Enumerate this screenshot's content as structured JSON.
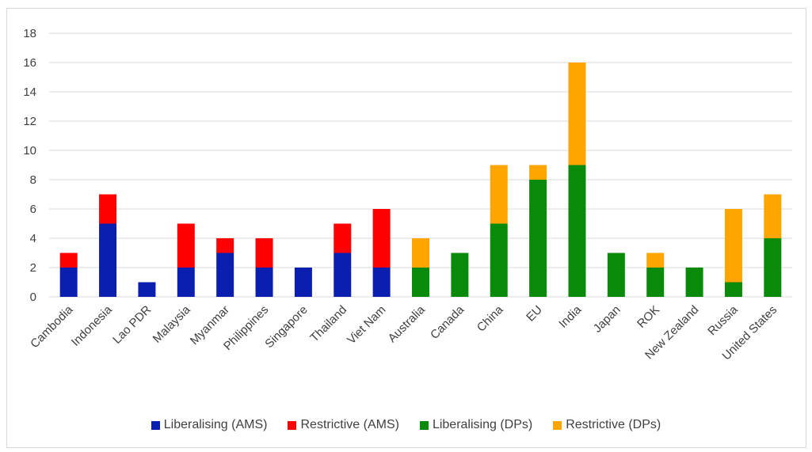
{
  "chart_data": {
    "type": "bar",
    "stacked": true,
    "categories": [
      "Cambodia",
      "Indonesia",
      "Lao PDR",
      "Malaysia",
      "Myanmar",
      "Philippines",
      "Singapore",
      "Thailand",
      "Viet Nam",
      "Australia",
      "Canada",
      "China",
      "EU",
      "India",
      "Japan",
      "ROK",
      "New Zealand",
      "Russia",
      "United States"
    ],
    "series": [
      {
        "name": "Liberalising (AMS)",
        "color": "#0a1fb0",
        "values": [
          2,
          5,
          1,
          2,
          3,
          2,
          2,
          3,
          2,
          0,
          0,
          0,
          0,
          0,
          0,
          0,
          0,
          0,
          0
        ]
      },
      {
        "name": "Restrictive (AMS)",
        "color": "#ff0000",
        "values": [
          1,
          2,
          0,
          3,
          1,
          2,
          0,
          2,
          4,
          0,
          0,
          0,
          0,
          0,
          0,
          0,
          0,
          0,
          0
        ]
      },
      {
        "name": "Liberalising (DPs)",
        "color": "#0a8a0a",
        "values": [
          0,
          0,
          0,
          0,
          0,
          0,
          0,
          0,
          0,
          2,
          3,
          5,
          8,
          9,
          3,
          2,
          2,
          1,
          4
        ]
      },
      {
        "name": "Restrictive (DPs)",
        "color": "#ffa500",
        "values": [
          0,
          0,
          0,
          0,
          0,
          0,
          0,
          0,
          0,
          2,
          0,
          4,
          1,
          7,
          0,
          1,
          0,
          5,
          3
        ]
      }
    ],
    "yticks": [
      0,
      2,
      4,
      6,
      8,
      10,
      12,
      14,
      16,
      18
    ],
    "ylim": [
      0,
      18
    ],
    "grid": true,
    "legend_position": "bottom"
  }
}
